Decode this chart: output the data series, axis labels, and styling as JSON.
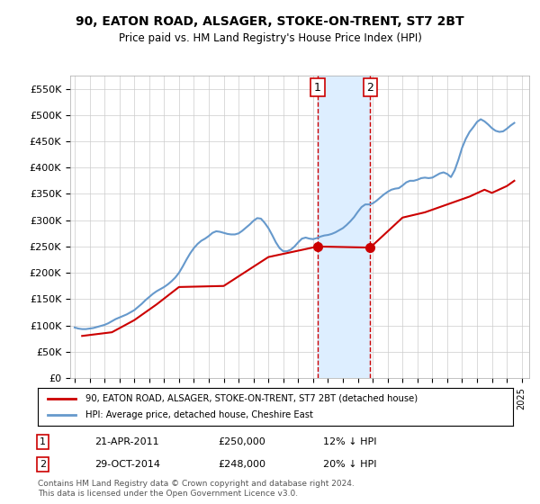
{
  "title": "90, EATON ROAD, ALSAGER, STOKE-ON-TRENT, ST7 2BT",
  "subtitle": "Price paid vs. HM Land Registry's House Price Index (HPI)",
  "ylabel_ticks": [
    "£0",
    "£50K",
    "£100K",
    "£150K",
    "£200K",
    "£250K",
    "£300K",
    "£350K",
    "£400K",
    "£450K",
    "£500K",
    "£550K"
  ],
  "ytick_vals": [
    0,
    50000,
    100000,
    150000,
    200000,
    250000,
    300000,
    350000,
    400000,
    450000,
    500000,
    550000
  ],
  "ylim": [
    0,
    575000
  ],
  "xlim_start": 1995,
  "xlim_end": 2025.5,
  "legend_line1": "90, EATON ROAD, ALSAGER, STOKE-ON-TRENT, ST7 2BT (detached house)",
  "legend_line2": "HPI: Average price, detached house, Cheshire East",
  "line1_color": "#cc0000",
  "line2_color": "#6699cc",
  "point1_date_label": "1",
  "point1_date": "21-APR-2011",
  "point1_price": "£250,000",
  "point1_hpi": "12% ↓ HPI",
  "point1_x": 2011.3,
  "point1_y": 250000,
  "point2_date_label": "2",
  "point2_date": "29-OCT-2014",
  "point2_price": "£248,000",
  "point2_hpi": "20% ↓ HPI",
  "point2_x": 2014.83,
  "point2_y": 248000,
  "vline_color": "#cc0000",
  "shade_color": "#ddeeff",
  "footnote": "Contains HM Land Registry data © Crown copyright and database right 2024.\nThis data is licensed under the Open Government Licence v3.0.",
  "hpi_data_x": [
    1995.0,
    1995.25,
    1995.5,
    1995.75,
    1996.0,
    1996.25,
    1996.5,
    1996.75,
    1997.0,
    1997.25,
    1997.5,
    1997.75,
    1998.0,
    1998.25,
    1998.5,
    1998.75,
    1999.0,
    1999.25,
    1999.5,
    1999.75,
    2000.0,
    2000.25,
    2000.5,
    2000.75,
    2001.0,
    2001.25,
    2001.5,
    2001.75,
    2002.0,
    2002.25,
    2002.5,
    2002.75,
    2003.0,
    2003.25,
    2003.5,
    2003.75,
    2004.0,
    2004.25,
    2004.5,
    2004.75,
    2005.0,
    2005.25,
    2005.5,
    2005.75,
    2006.0,
    2006.25,
    2006.5,
    2006.75,
    2007.0,
    2007.25,
    2007.5,
    2007.75,
    2008.0,
    2008.25,
    2008.5,
    2008.75,
    2009.0,
    2009.25,
    2009.5,
    2009.75,
    2010.0,
    2010.25,
    2010.5,
    2010.75,
    2011.0,
    2011.25,
    2011.5,
    2011.75,
    2012.0,
    2012.25,
    2012.5,
    2012.75,
    2013.0,
    2013.25,
    2013.5,
    2013.75,
    2014.0,
    2014.25,
    2014.5,
    2014.75,
    2015.0,
    2015.25,
    2015.5,
    2015.75,
    2016.0,
    2016.25,
    2016.5,
    2016.75,
    2017.0,
    2017.25,
    2017.5,
    2017.75,
    2018.0,
    2018.25,
    2018.5,
    2018.75,
    2019.0,
    2019.25,
    2019.5,
    2019.75,
    2020.0,
    2020.25,
    2020.5,
    2020.75,
    2021.0,
    2021.25,
    2021.5,
    2021.75,
    2022.0,
    2022.25,
    2022.5,
    2022.75,
    2023.0,
    2023.25,
    2023.5,
    2023.75,
    2024.0,
    2024.25,
    2024.5
  ],
  "hpi_data_y": [
    96000,
    94000,
    93000,
    93000,
    94000,
    95000,
    97000,
    99000,
    101000,
    104000,
    108000,
    112000,
    115000,
    118000,
    121000,
    125000,
    129000,
    135000,
    141000,
    148000,
    154000,
    160000,
    165000,
    169000,
    173000,
    178000,
    184000,
    191000,
    200000,
    212000,
    225000,
    237000,
    247000,
    255000,
    261000,
    265000,
    270000,
    276000,
    279000,
    278000,
    276000,
    274000,
    273000,
    273000,
    275000,
    280000,
    286000,
    292000,
    299000,
    304000,
    303000,
    295000,
    285000,
    272000,
    258000,
    247000,
    241000,
    241000,
    244000,
    250000,
    258000,
    265000,
    267000,
    265000,
    264000,
    266000,
    269000,
    271000,
    272000,
    274000,
    277000,
    281000,
    285000,
    291000,
    298000,
    306000,
    316000,
    325000,
    330000,
    330000,
    332000,
    337000,
    343000,
    349000,
    354000,
    358000,
    360000,
    361000,
    366000,
    372000,
    375000,
    375000,
    377000,
    380000,
    381000,
    380000,
    381000,
    385000,
    389000,
    391000,
    388000,
    382000,
    395000,
    415000,
    438000,
    455000,
    468000,
    477000,
    487000,
    492000,
    488000,
    482000,
    475000,
    470000,
    468000,
    469000,
    474000,
    480000,
    485000
  ],
  "price_data_x": [
    1995.5,
    1997.5,
    1999.0,
    2000.5,
    2002.0,
    2005.0,
    2008.0,
    2011.3,
    2014.83,
    2017.0,
    2018.5,
    2020.0,
    2021.5,
    2022.5,
    2023.0,
    2024.0,
    2024.5
  ],
  "price_data_y": [
    80000,
    87000,
    110000,
    140000,
    173000,
    175000,
    230000,
    250000,
    248000,
    305000,
    315000,
    330000,
    345000,
    358000,
    352000,
    365000,
    375000
  ],
  "background_color": "#ffffff",
  "grid_color": "#cccccc",
  "plot_bg": "#ffffff"
}
